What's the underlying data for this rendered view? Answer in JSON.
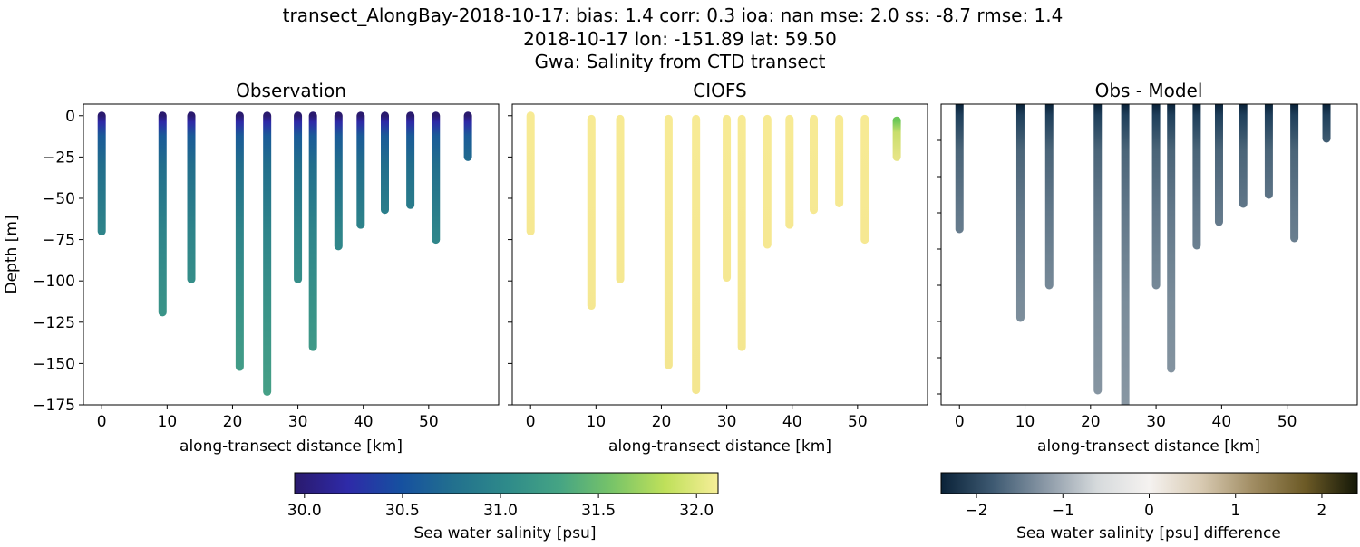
{
  "figure": {
    "title_lines": [
      "transect_AlongBay-2018-10-17: bias: 1.4  corr: 0.3  ioa: nan  mse: 2.0  ss: -8.7  rmse: 1.4",
      "2018-10-17 lon: -151.89 lat: 59.50",
      "Gwa: Salinity from CTD transect"
    ]
  },
  "chart_data": [
    {
      "type": "scatter",
      "title": "Observation",
      "xlabel": "along-transect distance [km]",
      "ylabel": "Depth [m]",
      "xlim": [
        -2.8,
        60.7
      ],
      "ylim": [
        -175,
        7
      ],
      "xticks": [
        0,
        10,
        20,
        30,
        40,
        50
      ],
      "yticks": [
        0,
        -25,
        -50,
        -75,
        -100,
        -125,
        -150,
        -175
      ],
      "ytick_labels": [
        "0",
        "−25",
        "−50",
        "−75",
        "−100",
        "−125",
        "−150",
        "−175"
      ],
      "grid": false,
      "colormap": "haline",
      "profiles": [
        {
          "x": 0,
          "top": 0,
          "bottom": -70
        },
        {
          "x": 9.3,
          "top": 0,
          "bottom": -119
        },
        {
          "x": 13.7,
          "top": 0,
          "bottom": -99
        },
        {
          "x": 21.1,
          "top": 0,
          "bottom": -152
        },
        {
          "x": 25.3,
          "top": 0,
          "bottom": -167
        },
        {
          "x": 30.0,
          "top": 0,
          "bottom": -99
        },
        {
          "x": 32.3,
          "top": 0,
          "bottom": -140
        },
        {
          "x": 36.2,
          "top": 0,
          "bottom": -79
        },
        {
          "x": 39.6,
          "top": 0,
          "bottom": -66
        },
        {
          "x": 43.3,
          "top": 0,
          "bottom": -57
        },
        {
          "x": 47.2,
          "top": 0,
          "bottom": -54
        },
        {
          "x": 51.1,
          "top": 0,
          "bottom": -75
        },
        {
          "x": 56.0,
          "top": 0,
          "bottom": -25
        }
      ]
    },
    {
      "type": "scatter",
      "title": "CIOFS",
      "xlabel": "along-transect distance [km]",
      "xlim": [
        -2.8,
        60.7
      ],
      "ylim": [
        -175,
        7
      ],
      "xticks": [
        0,
        10,
        20,
        30,
        40,
        50
      ],
      "yticks": [
        0,
        -25,
        -50,
        -75,
        -100,
        -125,
        -150,
        -175
      ],
      "grid": false,
      "colormap": "haline",
      "profiles": [
        {
          "x": 0,
          "top": 0,
          "bottom": -70
        },
        {
          "x": 9.3,
          "top": -2,
          "bottom": -115
        },
        {
          "x": 13.7,
          "top": -2,
          "bottom": -99
        },
        {
          "x": 21.1,
          "top": -2,
          "bottom": -151
        },
        {
          "x": 25.3,
          "top": -2,
          "bottom": -166
        },
        {
          "x": 30.0,
          "top": -2,
          "bottom": -98
        },
        {
          "x": 32.3,
          "top": -2,
          "bottom": -140
        },
        {
          "x": 36.2,
          "top": -2,
          "bottom": -78
        },
        {
          "x": 39.6,
          "top": -2,
          "bottom": -66
        },
        {
          "x": 43.3,
          "top": -2,
          "bottom": -57
        },
        {
          "x": 47.2,
          "top": -2,
          "bottom": -53
        },
        {
          "x": 51.1,
          "top": -2,
          "bottom": -75
        },
        {
          "x": 56.0,
          "top": -3,
          "bottom": -25
        }
      ]
    },
    {
      "type": "scatter",
      "title": "Obs - Model",
      "xlabel": "along-transect distance [km]",
      "xlim": [
        -2.8,
        60.7
      ],
      "ylim": [
        -166,
        0
      ],
      "xticks": [
        0,
        10,
        20,
        30,
        40,
        50
      ],
      "yticks": [
        -20,
        -40,
        -60,
        -80,
        -100,
        -120,
        -140,
        -160
      ],
      "grid": false,
      "colormap": "diff",
      "profiles": [
        {
          "x": 0,
          "top": 0,
          "bottom": -69
        },
        {
          "x": 9.3,
          "top": 0,
          "bottom": -118
        },
        {
          "x": 13.7,
          "top": 0,
          "bottom": -100
        },
        {
          "x": 21.1,
          "top": 0,
          "bottom": -158
        },
        {
          "x": 25.3,
          "top": 0,
          "bottom": -175
        },
        {
          "x": 30.0,
          "top": 0,
          "bottom": -100
        },
        {
          "x": 32.3,
          "top": 0,
          "bottom": -146
        },
        {
          "x": 36.2,
          "top": 0,
          "bottom": -78
        },
        {
          "x": 39.6,
          "top": 0,
          "bottom": -65
        },
        {
          "x": 43.3,
          "top": 0,
          "bottom": -55
        },
        {
          "x": 47.2,
          "top": 0,
          "bottom": -50
        },
        {
          "x": 51.1,
          "top": 0,
          "bottom": -74
        },
        {
          "x": 56.0,
          "top": 0,
          "bottom": -19
        }
      ]
    }
  ],
  "colorbars": [
    {
      "label": "Sea water salinity [psu]",
      "range": [
        29.95,
        32.11
      ],
      "ticks": [
        30.0,
        30.5,
        31.0,
        31.5,
        32.0
      ],
      "tick_labels": [
        "30.0",
        "30.5",
        "31.0",
        "31.5",
        "32.0"
      ],
      "colors": [
        "#2a1a6e",
        "#2e2aa8",
        "#1650a0",
        "#22708e",
        "#2e8a8a",
        "#45a484",
        "#78c468",
        "#bfe05a",
        "#f6ee98"
      ]
    },
    {
      "label": "Sea water salinity [psu] difference",
      "range": [
        -2.41,
        2.41
      ],
      "ticks": [
        -2,
        -1,
        0,
        1,
        2
      ],
      "tick_labels": [
        "−2",
        "−1",
        "0",
        "1",
        "2"
      ],
      "colors": [
        "#0a2238",
        "#3e5a72",
        "#8a98a6",
        "#d6dadc",
        "#f5f2f0",
        "#d8cab2",
        "#a08c62",
        "#6c5a26",
        "#141808"
      ]
    }
  ]
}
